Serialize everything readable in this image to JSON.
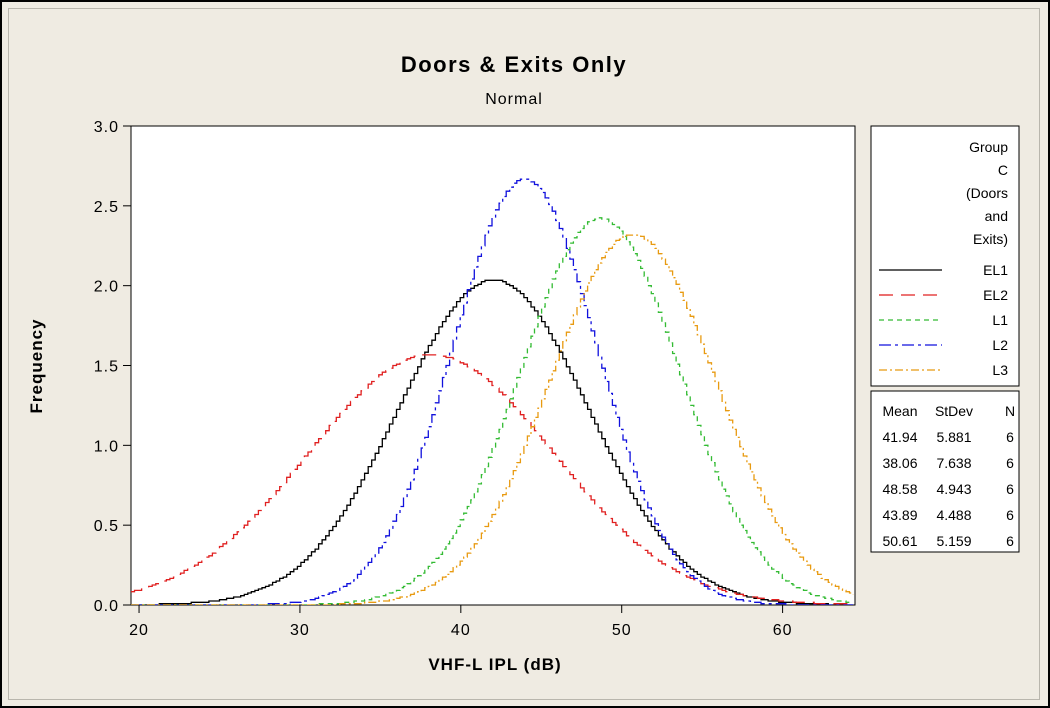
{
  "chart_data": {
    "type": "line",
    "title": "Doors & Exits Only",
    "subtitle": "Normal",
    "xlabel": "VHF-L IPL (dB)",
    "ylabel": "Frequency",
    "xlim": [
      19.5,
      64.5
    ],
    "ylim": [
      0,
      3.0
    ],
    "x_ticks": [
      20,
      30,
      40,
      50,
      60
    ],
    "y_ticks": [
      0.0,
      0.5,
      1.0,
      1.5,
      2.0,
      2.5,
      3.0
    ],
    "x_tick_labels": [
      "20",
      "30",
      "40",
      "50",
      "60"
    ],
    "y_tick_labels": [
      "0.0",
      "0.5",
      "1.0",
      "1.5",
      "2.0",
      "2.5",
      "3.0"
    ],
    "grid": false,
    "legend_position": "right",
    "legend_title": [
      "Group",
      "C",
      "(Doors",
      "and",
      "Exits)"
    ],
    "sample_size": 6,
    "bin_width": 5,
    "series": [
      {
        "name": "EL1",
        "mean": 41.94,
        "stdev": 5.881,
        "n": 6,
        "color": "#000000",
        "dash": "",
        "peak": 2.03
      },
      {
        "name": "EL2",
        "mean": 38.06,
        "stdev": 7.638,
        "n": 6,
        "color": "#e02020",
        "dash": "14 8",
        "peak": 1.57
      },
      {
        "name": "L1",
        "mean": 48.58,
        "stdev": 4.943,
        "n": 6,
        "color": "#33bb33",
        "dash": "5 4",
        "peak": 2.42
      },
      {
        "name": "L2",
        "mean": 43.89,
        "stdev": 4.488,
        "n": 6,
        "color": "#1111dd",
        "dash": "12 4 3 4",
        "peak": 2.67
      },
      {
        "name": "L3",
        "mean": 50.61,
        "stdev": 5.159,
        "n": 6,
        "color": "#e89a10",
        "dash": "8 3 2 3",
        "peak": 2.32
      }
    ],
    "table": {
      "headers": [
        "Mean",
        "StDev",
        "N"
      ],
      "rows": [
        [
          "41.94",
          "5.881",
          "6"
        ],
        [
          "38.06",
          "7.638",
          "6"
        ],
        [
          "48.58",
          "4.943",
          "6"
        ],
        [
          "43.89",
          "4.488",
          "6"
        ],
        [
          "50.61",
          "5.159",
          "6"
        ]
      ]
    }
  }
}
